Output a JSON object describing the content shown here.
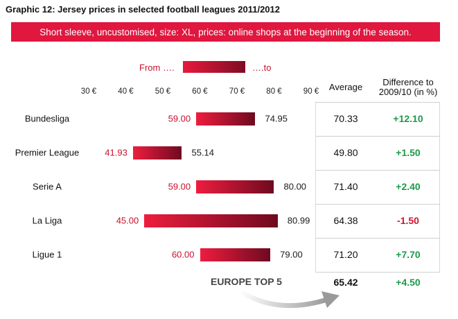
{
  "title": "Graphic 12: Jersey prices in selected football leagues 2011/2012",
  "subtitle": "Short sleeve, uncustomised, size: XL, prices: online shops at the beginning of the season.",
  "legend": {
    "from": "From ….",
    "to": "….to"
  },
  "columns": {
    "average": "Average",
    "difference": "Difference to\n2009/10 (in %)"
  },
  "colors": {
    "banner": "#e0173f",
    "positive": "#1e9a4a",
    "negative": "#d0142c",
    "from_value": "#c8102e"
  },
  "chart_data": {
    "type": "bar",
    "subtype": "range",
    "title": "Graphic 12: Jersey prices in selected football leagues 2011/2012",
    "xlabel": "",
    "ylabel": "",
    "xlim": [
      30,
      90
    ],
    "ticks": [
      30,
      40,
      50,
      60,
      70,
      80,
      90
    ],
    "tick_labels": [
      "30 €",
      "40 €",
      "50 €",
      "60 €",
      "70 €",
      "80 €",
      "90 €"
    ],
    "categories": [
      "Bundesliga",
      "Premier League",
      "Serie A",
      "La Liga",
      "Ligue 1"
    ],
    "from": [
      59.0,
      41.93,
      59.0,
      45.0,
      60.0
    ],
    "to": [
      74.95,
      55.14,
      80.0,
      80.99,
      79.0
    ],
    "from_labels": [
      "59.00",
      "41.93",
      "59.00",
      "45.00",
      "60.00"
    ],
    "to_labels": [
      "74.95",
      "55.14",
      "80.00",
      "80.99",
      "79.00"
    ],
    "average": [
      "70.33",
      "49.80",
      "71.40",
      "64.38",
      "71.20"
    ],
    "difference": [
      "+12.10",
      "+1.50",
      "+2.40",
      "-1.50",
      "+7.70"
    ],
    "summary": {
      "label": "EUROPE TOP 5",
      "average": "65.42",
      "difference": "+4.50"
    }
  }
}
